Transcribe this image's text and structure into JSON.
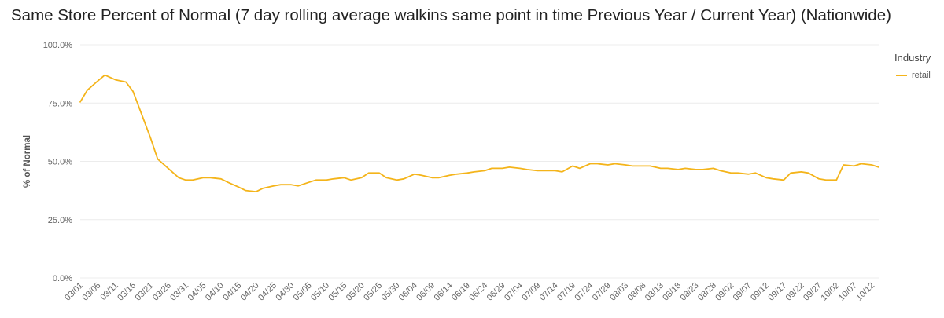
{
  "title": "Same Store Percent of Normal (7 day rolling average walkins same point in time Previous Year / Current Year) (Nationwide)",
  "colors": {
    "series": "#f4b41a",
    "grid": "#ececec"
  },
  "legend": {
    "title": "Industry",
    "items": [
      {
        "label": "retail"
      }
    ]
  },
  "chart_data": {
    "type": "line",
    "title": "Same Store Percent of Normal (7 day rolling average walkins same point in time Previous Year / Current Year) (Nationwide)",
    "xlabel": "",
    "ylabel": "% of Normal",
    "ylim": [
      0,
      100
    ],
    "yticks": [
      "0.0%",
      "25.0%",
      "50.0%",
      "75.0%",
      "100.0%"
    ],
    "ytick_values": [
      0,
      25,
      50,
      75,
      100
    ],
    "grid": true,
    "legend_position": "right",
    "x_tick_labels": [
      "03/01",
      "03/06",
      "03/11",
      "03/16",
      "03/21",
      "03/26",
      "03/31",
      "04/05",
      "04/10",
      "04/15",
      "04/20",
      "04/25",
      "04/30",
      "05/05",
      "05/10",
      "05/15",
      "05/20",
      "05/25",
      "05/30",
      "06/04",
      "06/09",
      "06/14",
      "06/19",
      "06/24",
      "06/29",
      "07/04",
      "07/09",
      "07/14",
      "07/19",
      "07/24",
      "07/29",
      "08/03",
      "08/08",
      "08/13",
      "08/18",
      "08/23",
      "08/28",
      "09/02",
      "09/07",
      "09/12",
      "09/17",
      "09/22",
      "09/27",
      "10/02",
      "10/07",
      "10/12"
    ],
    "series": [
      {
        "name": "retail",
        "color": "#f4b41a",
        "x": [
          "03/01",
          "03/03",
          "03/06",
          "03/08",
          "03/11",
          "03/14",
          "03/16",
          "03/19",
          "03/21",
          "03/23",
          "03/26",
          "03/29",
          "03/31",
          "04/02",
          "04/05",
          "04/07",
          "04/10",
          "04/12",
          "04/15",
          "04/17",
          "04/20",
          "04/22",
          "04/25",
          "04/27",
          "04/30",
          "05/02",
          "05/05",
          "05/07",
          "05/10",
          "05/12",
          "05/15",
          "05/17",
          "05/20",
          "05/22",
          "05/25",
          "05/27",
          "05/30",
          "06/01",
          "06/04",
          "06/06",
          "06/09",
          "06/11",
          "06/14",
          "06/16",
          "06/19",
          "06/21",
          "06/24",
          "06/26",
          "06/29",
          "07/01",
          "07/04",
          "07/06",
          "07/09",
          "07/11",
          "07/14",
          "07/16",
          "07/19",
          "07/21",
          "07/24",
          "07/26",
          "07/29",
          "07/31",
          "08/03",
          "08/05",
          "08/08",
          "08/10",
          "08/13",
          "08/15",
          "08/18",
          "08/20",
          "08/23",
          "08/25",
          "08/28",
          "08/30",
          "09/02",
          "09/04",
          "09/07",
          "09/09",
          "09/12",
          "09/14",
          "09/17",
          "09/19",
          "09/22",
          "09/24",
          "09/27",
          "09/29",
          "10/02",
          "10/04",
          "10/07",
          "10/09",
          "10/12",
          "10/14"
        ],
        "values": [
          75.5,
          80.5,
          84.5,
          87,
          85,
          84,
          80,
          68,
          60,
          51,
          47,
          43,
          42,
          42,
          43,
          43,
          42.5,
          41,
          39,
          37.5,
          37,
          38.5,
          39.5,
          40,
          40,
          39.5,
          41,
          42,
          42,
          42.5,
          43,
          42,
          43,
          45,
          45,
          43,
          42,
          42.5,
          44.5,
          44,
          43,
          43,
          44,
          44.5,
          45,
          45.5,
          46,
          47,
          47,
          47.5,
          47,
          46.5,
          46,
          46,
          46,
          45.5,
          48,
          47,
          49,
          49,
          48.5,
          49,
          48.5,
          48,
          48,
          48,
          47,
          47,
          46.5,
          47,
          46.5,
          46.5,
          47,
          46,
          45,
          45,
          44.5,
          45,
          43,
          42.5,
          42,
          45,
          45.5,
          45,
          42.5,
          42,
          42,
          48.5,
          48,
          49,
          48.5,
          47.5
        ]
      }
    ]
  }
}
